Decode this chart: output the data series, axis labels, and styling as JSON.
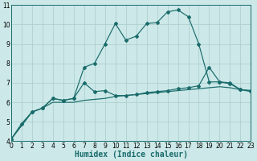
{
  "bg_color": "#cce8e8",
  "grid_color": "#aacccc",
  "line_color": "#1a6b6b",
  "xlabel": "Humidex (Indice chaleur)",
  "xlabel_fontsize": 7,
  "xlim": [
    0,
    23
  ],
  "ylim": [
    4,
    11
  ],
  "xticks": [
    0,
    1,
    2,
    3,
    4,
    5,
    6,
    7,
    8,
    9,
    10,
    11,
    12,
    13,
    14,
    15,
    16,
    17,
    18,
    19,
    20,
    21,
    22,
    23
  ],
  "yticks": [
    4,
    5,
    6,
    7,
    8,
    9,
    10,
    11
  ],
  "line1_x": [
    0,
    1,
    2,
    3,
    4,
    5,
    6,
    7,
    8,
    9,
    10,
    11,
    12,
    13,
    14,
    15,
    16,
    17,
    18,
    19,
    20,
    21,
    22,
    23
  ],
  "line1_y": [
    4.1,
    4.9,
    5.5,
    5.7,
    6.2,
    6.1,
    6.2,
    7.8,
    8.0,
    9.0,
    10.05,
    9.2,
    9.4,
    10.05,
    10.1,
    10.65,
    10.75,
    10.4,
    9.0,
    7.05,
    7.05,
    6.95,
    6.65,
    6.6
  ],
  "line2_x": [
    0,
    2,
    3,
    4,
    5,
    6,
    7,
    8,
    9,
    10,
    11,
    12,
    13,
    14,
    15,
    16,
    17,
    18,
    19,
    20,
    21,
    22,
    23
  ],
  "line2_y": [
    4.1,
    5.5,
    5.7,
    6.2,
    6.1,
    6.2,
    7.0,
    6.55,
    6.6,
    6.35,
    6.35,
    6.4,
    6.5,
    6.55,
    6.6,
    6.7,
    6.75,
    6.85,
    7.8,
    7.05,
    7.0,
    6.65,
    6.6
  ],
  "line3_x": [
    0,
    2,
    3,
    4,
    5,
    6,
    7,
    8,
    9,
    10,
    11,
    12,
    13,
    14,
    15,
    16,
    17,
    18,
    19,
    20,
    21,
    22,
    23
  ],
  "line3_y": [
    4.1,
    5.5,
    5.7,
    6.0,
    6.0,
    6.0,
    6.1,
    6.15,
    6.2,
    6.3,
    6.35,
    6.4,
    6.45,
    6.5,
    6.55,
    6.6,
    6.65,
    6.7,
    6.75,
    6.8,
    6.75,
    6.65,
    6.55
  ]
}
